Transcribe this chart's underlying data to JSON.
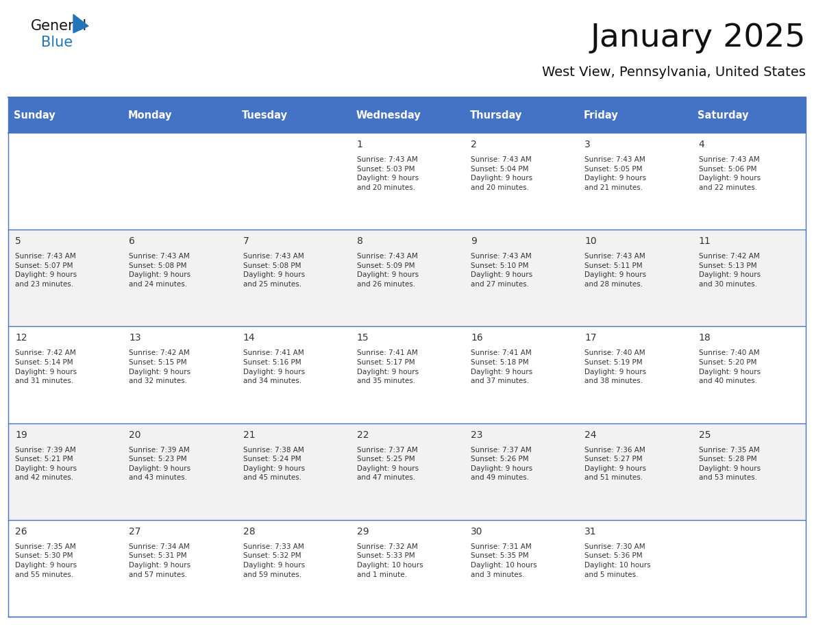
{
  "title": "January 2025",
  "subtitle": "West View, Pennsylvania, United States",
  "days_of_week": [
    "Sunday",
    "Monday",
    "Tuesday",
    "Wednesday",
    "Thursday",
    "Friday",
    "Saturday"
  ],
  "header_bg": "#4472C4",
  "header_text": "#FFFFFF",
  "cell_bg_white": "#FFFFFF",
  "cell_bg_gray": "#F2F2F2",
  "border_color": "#4472C4",
  "line_color": "#AAAACC",
  "day_number_color": "#333333",
  "cell_text_color": "#333333",
  "title_color": "#111111",
  "subtitle_color": "#111111",
  "logo_general_color": "#111111",
  "logo_blue_color": "#2275B8",
  "weeks": [
    [
      {
        "day": null,
        "info": null
      },
      {
        "day": null,
        "info": null
      },
      {
        "day": null,
        "info": null
      },
      {
        "day": 1,
        "info": "Sunrise: 7:43 AM\nSunset: 5:03 PM\nDaylight: 9 hours\nand 20 minutes."
      },
      {
        "day": 2,
        "info": "Sunrise: 7:43 AM\nSunset: 5:04 PM\nDaylight: 9 hours\nand 20 minutes."
      },
      {
        "day": 3,
        "info": "Sunrise: 7:43 AM\nSunset: 5:05 PM\nDaylight: 9 hours\nand 21 minutes."
      },
      {
        "day": 4,
        "info": "Sunrise: 7:43 AM\nSunset: 5:06 PM\nDaylight: 9 hours\nand 22 minutes."
      }
    ],
    [
      {
        "day": 5,
        "info": "Sunrise: 7:43 AM\nSunset: 5:07 PM\nDaylight: 9 hours\nand 23 minutes."
      },
      {
        "day": 6,
        "info": "Sunrise: 7:43 AM\nSunset: 5:08 PM\nDaylight: 9 hours\nand 24 minutes."
      },
      {
        "day": 7,
        "info": "Sunrise: 7:43 AM\nSunset: 5:08 PM\nDaylight: 9 hours\nand 25 minutes."
      },
      {
        "day": 8,
        "info": "Sunrise: 7:43 AM\nSunset: 5:09 PM\nDaylight: 9 hours\nand 26 minutes."
      },
      {
        "day": 9,
        "info": "Sunrise: 7:43 AM\nSunset: 5:10 PM\nDaylight: 9 hours\nand 27 minutes."
      },
      {
        "day": 10,
        "info": "Sunrise: 7:43 AM\nSunset: 5:11 PM\nDaylight: 9 hours\nand 28 minutes."
      },
      {
        "day": 11,
        "info": "Sunrise: 7:42 AM\nSunset: 5:13 PM\nDaylight: 9 hours\nand 30 minutes."
      }
    ],
    [
      {
        "day": 12,
        "info": "Sunrise: 7:42 AM\nSunset: 5:14 PM\nDaylight: 9 hours\nand 31 minutes."
      },
      {
        "day": 13,
        "info": "Sunrise: 7:42 AM\nSunset: 5:15 PM\nDaylight: 9 hours\nand 32 minutes."
      },
      {
        "day": 14,
        "info": "Sunrise: 7:41 AM\nSunset: 5:16 PM\nDaylight: 9 hours\nand 34 minutes."
      },
      {
        "day": 15,
        "info": "Sunrise: 7:41 AM\nSunset: 5:17 PM\nDaylight: 9 hours\nand 35 minutes."
      },
      {
        "day": 16,
        "info": "Sunrise: 7:41 AM\nSunset: 5:18 PM\nDaylight: 9 hours\nand 37 minutes."
      },
      {
        "day": 17,
        "info": "Sunrise: 7:40 AM\nSunset: 5:19 PM\nDaylight: 9 hours\nand 38 minutes."
      },
      {
        "day": 18,
        "info": "Sunrise: 7:40 AM\nSunset: 5:20 PM\nDaylight: 9 hours\nand 40 minutes."
      }
    ],
    [
      {
        "day": 19,
        "info": "Sunrise: 7:39 AM\nSunset: 5:21 PM\nDaylight: 9 hours\nand 42 minutes."
      },
      {
        "day": 20,
        "info": "Sunrise: 7:39 AM\nSunset: 5:23 PM\nDaylight: 9 hours\nand 43 minutes."
      },
      {
        "day": 21,
        "info": "Sunrise: 7:38 AM\nSunset: 5:24 PM\nDaylight: 9 hours\nand 45 minutes."
      },
      {
        "day": 22,
        "info": "Sunrise: 7:37 AM\nSunset: 5:25 PM\nDaylight: 9 hours\nand 47 minutes."
      },
      {
        "day": 23,
        "info": "Sunrise: 7:37 AM\nSunset: 5:26 PM\nDaylight: 9 hours\nand 49 minutes."
      },
      {
        "day": 24,
        "info": "Sunrise: 7:36 AM\nSunset: 5:27 PM\nDaylight: 9 hours\nand 51 minutes."
      },
      {
        "day": 25,
        "info": "Sunrise: 7:35 AM\nSunset: 5:28 PM\nDaylight: 9 hours\nand 53 minutes."
      }
    ],
    [
      {
        "day": 26,
        "info": "Sunrise: 7:35 AM\nSunset: 5:30 PM\nDaylight: 9 hours\nand 55 minutes."
      },
      {
        "day": 27,
        "info": "Sunrise: 7:34 AM\nSunset: 5:31 PM\nDaylight: 9 hours\nand 57 minutes."
      },
      {
        "day": 28,
        "info": "Sunrise: 7:33 AM\nSunset: 5:32 PM\nDaylight: 9 hours\nand 59 minutes."
      },
      {
        "day": 29,
        "info": "Sunrise: 7:32 AM\nSunset: 5:33 PM\nDaylight: 10 hours\nand 1 minute."
      },
      {
        "day": 30,
        "info": "Sunrise: 7:31 AM\nSunset: 5:35 PM\nDaylight: 10 hours\nand 3 minutes."
      },
      {
        "day": 31,
        "info": "Sunrise: 7:30 AM\nSunset: 5:36 PM\nDaylight: 10 hours\nand 5 minutes."
      },
      {
        "day": null,
        "info": null
      }
    ]
  ]
}
